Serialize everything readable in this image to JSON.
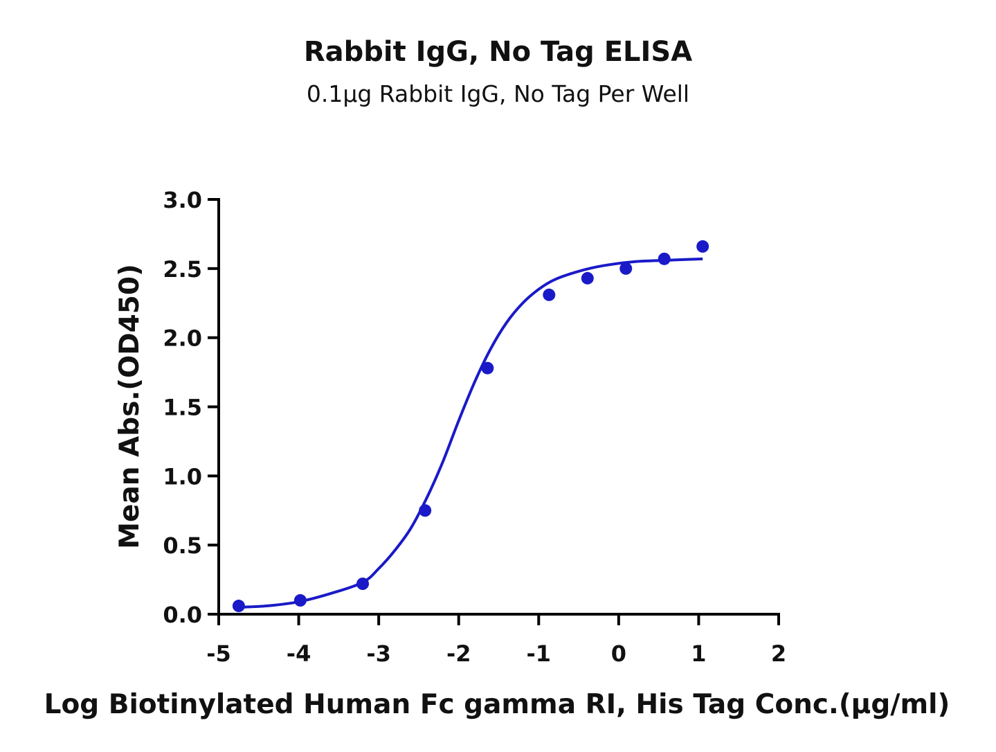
{
  "chart_data": {
    "type": "scatter",
    "title": "Rabbit IgG, No Tag ELISA",
    "subtitle": "0.1µg Rabbit IgG, No Tag Per Well",
    "xlabel": "Log Biotinylated Human Fc gamma RI, His Tag Conc.(µg/ml)",
    "ylabel": "Mean Abs.(OD450)",
    "xlim": [
      -5,
      2
    ],
    "ylim": [
      0,
      3
    ],
    "x_ticks": [
      -5,
      -4,
      -3,
      -2,
      -1,
      0,
      1,
      2
    ],
    "x_tick_labels": [
      "-5",
      "-4",
      "-3",
      "-2",
      "-1",
      "0",
      "1",
      "2"
    ],
    "y_ticks": [
      0,
      0.5,
      1,
      1.5,
      2,
      2.5,
      3
    ],
    "y_tick_labels": [
      "0.0",
      "0.5",
      "1.0",
      "1.5",
      "2.0",
      "2.5",
      "3.0"
    ],
    "grid": false,
    "legend": "none",
    "series": [
      {
        "color": "#1a1ac8",
        "points": [
          {
            "x": -4.75,
            "y": 0.06
          },
          {
            "x": -3.98,
            "y": 0.1
          },
          {
            "x": -3.2,
            "y": 0.22
          },
          {
            "x": -2.42,
            "y": 0.75
          },
          {
            "x": -1.64,
            "y": 1.78
          },
          {
            "x": -0.87,
            "y": 2.31
          },
          {
            "x": -0.39,
            "y": 2.43
          },
          {
            "x": 0.09,
            "y": 2.5
          },
          {
            "x": 0.57,
            "y": 2.57
          },
          {
            "x": 1.05,
            "y": 2.66
          }
        ],
        "fit_curve": [
          {
            "x": -4.75,
            "y": 0.05
          },
          {
            "x": -4.4,
            "y": 0.06
          },
          {
            "x": -4.0,
            "y": 0.09
          },
          {
            "x": -3.6,
            "y": 0.15
          },
          {
            "x": -3.2,
            "y": 0.23
          },
          {
            "x": -3.0,
            "y": 0.33
          },
          {
            "x": -2.8,
            "y": 0.46
          },
          {
            "x": -2.6,
            "y": 0.62
          },
          {
            "x": -2.4,
            "y": 0.84
          },
          {
            "x": -2.2,
            "y": 1.1
          },
          {
            "x": -2.0,
            "y": 1.4
          },
          {
            "x": -1.8,
            "y": 1.68
          },
          {
            "x": -1.6,
            "y": 1.92
          },
          {
            "x": -1.4,
            "y": 2.11
          },
          {
            "x": -1.2,
            "y": 2.25
          },
          {
            "x": -1.0,
            "y": 2.35
          },
          {
            "x": -0.8,
            "y": 2.42
          },
          {
            "x": -0.5,
            "y": 2.48
          },
          {
            "x": -0.2,
            "y": 2.52
          },
          {
            "x": 0.2,
            "y": 2.55
          },
          {
            "x": 0.6,
            "y": 2.56
          },
          {
            "x": 1.05,
            "y": 2.57
          }
        ]
      }
    ]
  }
}
